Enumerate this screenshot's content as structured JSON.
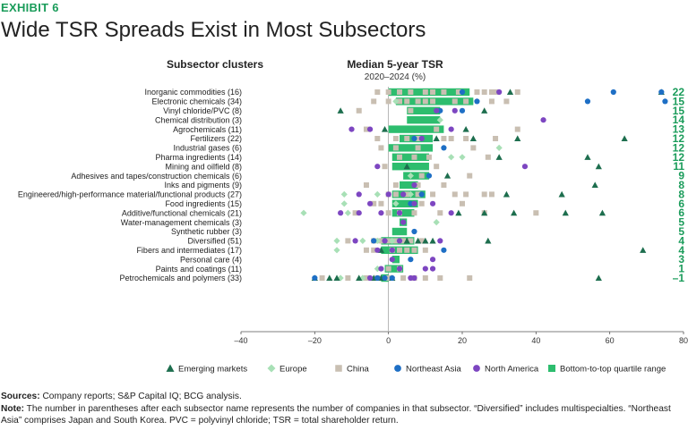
{
  "header": {
    "exhibit": "EXHIBIT 6",
    "title": "Wide TSR Spreads Exist in Most Subsectors"
  },
  "chart_data": {
    "type": "scatter",
    "left_header": "Subsector clusters",
    "right_header": "Median 5-year TSR",
    "right_subheader": "2020–2024 (%)",
    "xlim": [
      -40,
      80
    ],
    "xticks": [
      -40,
      -20,
      0,
      20,
      40,
      60,
      80
    ],
    "xtick_labels": [
      "–40",
      "–20",
      "0",
      "20",
      "40",
      "60",
      "80"
    ],
    "grid": false,
    "legend_position": "bottom",
    "legend": [
      {
        "key": "em",
        "label": "Emerging markets",
        "shape": "triangle",
        "color": "#1d6e4e"
      },
      {
        "key": "eu",
        "label": "Europe",
        "shape": "diamond",
        "color": "#a8e0b6"
      },
      {
        "key": "cn",
        "label": "China",
        "shape": "square",
        "color": "#c9bfb2"
      },
      {
        "key": "na",
        "label": "Northeast Asia",
        "shape": "circle",
        "color": "#1e6fc5"
      },
      {
        "key": "am",
        "label": "North America",
        "shape": "circle",
        "color": "#7d46c1"
      },
      {
        "key": "bar",
        "label": "Bottom-to-top quartile range",
        "shape": "bar",
        "color": "#2dbd6e"
      }
    ],
    "rows": [
      {
        "label": "Inorganic commodities (16)",
        "median_label": "22",
        "range": [
          0,
          22
        ],
        "em": [
          33,
          74
        ],
        "eu": [],
        "cn": [
          -3,
          0,
          3,
          6,
          10,
          12,
          15,
          19,
          24,
          26,
          28,
          29,
          35
        ],
        "na": [
          20,
          61,
          74
        ],
        "am": [
          30
        ]
      },
      {
        "label": "Electronic chemicals (34)",
        "median_label": "15",
        "range": [
          2,
          23
        ],
        "em": [],
        "eu": [
          2
        ],
        "cn": [
          -4,
          0,
          3,
          5,
          8,
          10,
          12,
          18,
          21,
          28,
          32
        ],
        "na": [
          24,
          54,
          75
        ],
        "am": []
      },
      {
        "label": "Vinyl chloride/PVC (8)",
        "median_label": "15",
        "range": [
          5,
          14
        ],
        "em": [
          -13,
          26
        ],
        "eu": [],
        "cn": [
          -8,
          6
        ],
        "na": [
          14,
          20
        ],
        "am": [
          13,
          18
        ]
      },
      {
        "label": "Chemical distribution (3)",
        "median_label": "14",
        "range": [
          5,
          14
        ],
        "em": [],
        "eu": [
          14
        ],
        "cn": [],
        "na": [],
        "am": [
          42
        ]
      },
      {
        "label": "Agrochemicals (11)",
        "median_label": "13",
        "range": [
          0,
          15
        ],
        "em": [
          -1,
          21
        ],
        "eu": [],
        "cn": [
          -6,
          13,
          35
        ],
        "na": [],
        "am": [
          -10,
          -5,
          17
        ]
      },
      {
        "label": "Fertilizers (22)",
        "median_label": "12",
        "range": [
          3,
          12
        ],
        "em": [
          13,
          23,
          35,
          64
        ],
        "eu": [],
        "cn": [
          -3,
          2,
          5,
          8,
          15,
          17,
          21,
          29
        ],
        "na": [
          7
        ],
        "am": [
          9
        ]
      },
      {
        "label": "Industrial gases (6)",
        "median_label": "12",
        "range": [
          0,
          12
        ],
        "em": [],
        "eu": [
          30
        ],
        "cn": [
          -2,
          2,
          8,
          23
        ],
        "na": [
          15
        ],
        "am": []
      },
      {
        "label": "Pharma ingredients (14)",
        "median_label": "12",
        "range": [
          1,
          11
        ],
        "em": [
          30,
          54
        ],
        "eu": [
          17,
          20
        ],
        "cn": [
          3,
          7,
          11,
          27
        ],
        "na": [],
        "am": []
      },
      {
        "label": "Mining and oilfield (8)",
        "median_label": "11",
        "range": [
          1,
          11
        ],
        "em": [
          5,
          57
        ],
        "eu": [],
        "cn": [
          -1,
          13
        ],
        "na": [],
        "am": [
          -3,
          37
        ]
      },
      {
        "label": "Adhesives and tapes/construction chemicals (6)",
        "median_label": "9",
        "range": [
          4,
          11
        ],
        "em": [
          16
        ],
        "eu": [
          6
        ],
        "cn": [
          9,
          22
        ],
        "na": [
          11
        ],
        "am": []
      },
      {
        "label": "Inks and pigments (9)",
        "median_label": "8",
        "range": [
          3,
          8
        ],
        "em": [
          56
        ],
        "eu": [],
        "cn": [
          -6,
          2,
          8,
          15
        ],
        "na": [],
        "am": [
          7
        ]
      },
      {
        "label": "Engineered/high-performance material/functional products (27)",
        "median_label": "8",
        "range": [
          1,
          10
        ],
        "em": [
          32,
          47
        ],
        "eu": [
          -12,
          -3,
          6
        ],
        "cn": [
          0,
          2,
          5,
          8,
          12,
          18,
          21,
          26,
          28
        ],
        "na": [
          9
        ],
        "am": [
          -8,
          0,
          4
        ]
      },
      {
        "label": "Food ingredients (15)",
        "median_label": "6",
        "range": [
          1,
          8
        ],
        "em": [],
        "eu": [
          -12,
          2
        ],
        "cn": [
          -4,
          -2,
          9,
          20
        ],
        "na": [
          6
        ],
        "am": [
          -5,
          7,
          12
        ]
      },
      {
        "label": "Additive/functional chemicals (21)",
        "median_label": "6",
        "range": [
          1,
          7
        ],
        "em": [
          19,
          26,
          34,
          48,
          58
        ],
        "eu": [
          -23,
          -11
        ],
        "cn": [
          -9,
          0,
          3,
          7,
          14,
          26,
          40
        ],
        "na": [],
        "am": [
          -13,
          -8,
          -2,
          3,
          17
        ]
      },
      {
        "label": "Water-management chemicals (3)",
        "median_label": "5",
        "range": [
          3,
          5
        ],
        "em": [],
        "eu": [
          13
        ],
        "cn": [],
        "na": [],
        "am": [
          4
        ]
      },
      {
        "label": "Synthetic rubber (3)",
        "median_label": "5",
        "range": [
          1,
          5
        ],
        "em": [],
        "eu": [],
        "cn": [],
        "na": [
          7
        ],
        "am": []
      },
      {
        "label": "Diversified (51)",
        "median_label": "4",
        "range": [
          -2,
          7
        ],
        "em": [
          5,
          8,
          10,
          12,
          27
        ],
        "eu": [
          -14,
          -7,
          -3,
          1,
          3
        ],
        "cn": [
          -11,
          -4,
          -2,
          0,
          2,
          4,
          6,
          9
        ],
        "na": [
          -4
        ],
        "am": [
          -9,
          -1,
          3,
          14
        ]
      },
      {
        "label": "Fibers and intermediates (17)",
        "median_label": "4",
        "range": [
          -2,
          8
        ],
        "em": [
          -2,
          69
        ],
        "eu": [
          -14
        ],
        "cn": [
          -6,
          -4,
          1,
          3,
          5,
          7,
          10
        ],
        "na": [
          15
        ],
        "am": [
          -3,
          1
        ]
      },
      {
        "label": "Personal care (4)",
        "median_label": "3",
        "range": [
          1,
          3
        ],
        "em": [],
        "eu": [],
        "cn": [],
        "na": [
          6
        ],
        "am": [
          1,
          12
        ]
      },
      {
        "label": "Paints and coatings (11)",
        "median_label": "1",
        "range": [
          -1,
          4
        ],
        "em": [],
        "eu": [
          -3
        ],
        "cn": [
          0,
          3
        ],
        "na": [],
        "am": [
          -2,
          3,
          10,
          12
        ]
      },
      {
        "label": "Petrochemicals and polymers (33)",
        "median_label": "–1",
        "range": [
          -2,
          0
        ],
        "em": [
          -20,
          -16,
          -14,
          -8,
          -4,
          -2,
          1,
          57
        ],
        "eu": [
          -13,
          -7
        ],
        "cn": [
          -18,
          -11,
          -6,
          -3,
          0,
          4,
          7,
          10,
          14,
          22
        ],
        "na": [
          -20,
          -3,
          -1,
          1
        ],
        "am": [
          -5,
          6,
          7
        ]
      }
    ]
  },
  "notes": {
    "sources_label": "Sources:",
    "sources_text": " Company reports; S&P Capital IQ; BCG analysis.",
    "note_label": "Note:",
    "note_text": " The number in parentheses after each subsector name represents the number of companies in that subsector. “Diversified” includes multispecialties. “Northeast Asia” comprises Japan and South Korea. PVC = polyvinyl chloride; TSR = total shareholder return."
  }
}
